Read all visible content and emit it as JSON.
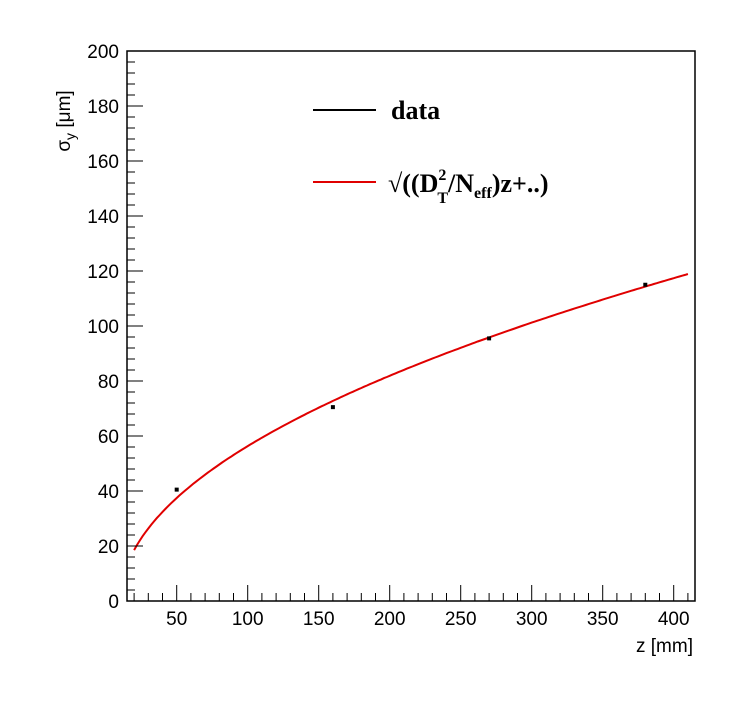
{
  "chart_data": {
    "type": "scatter",
    "title": "",
    "xlabel": "z [mm]",
    "ylabel_main": "σ",
    "ylabel_sub": "y",
    "ylabel_unit": " [μm]",
    "xlim": [
      15,
      415
    ],
    "ylim": [
      0,
      200
    ],
    "xticks": [
      50,
      100,
      150,
      200,
      250,
      300,
      350,
      400
    ],
    "yticks": [
      0,
      20,
      40,
      60,
      80,
      100,
      120,
      140,
      160,
      180,
      200
    ],
    "grid": false,
    "legend_position": "top-center",
    "series": [
      {
        "name": "data",
        "kind": "points",
        "color": "#000000",
        "x": [
          50,
          160,
          270,
          380
        ],
        "y": [
          40.5,
          70.5,
          95.5,
          115
        ]
      },
      {
        "name": "√((D_T^2/N_eff)z+..)",
        "kind": "fit",
        "color": "#e00000",
        "x_range": [
          20,
          410
        ]
      }
    ],
    "legend": {
      "entry1": "data",
      "entry2_prefix": "√((D",
      "entry2_sup": "2",
      "entry2_sub": "T",
      "entry2_mid": "/N",
      "entry2_sub2": "eff",
      "entry2_suffix": ")z+..)"
    }
  }
}
